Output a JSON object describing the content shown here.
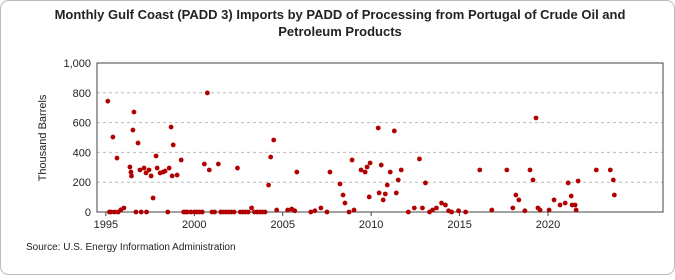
{
  "chart_data": {
    "type": "scatter",
    "title": [
      "Monthly Gulf Coast (PADD 3) Imports by PADD of Processing from Portugal of Crude Oil and",
      "Petroleum Products"
    ],
    "y_label": "Thousand Barrels",
    "source": "Source: U.S. Energy Information Administration",
    "color": "#b00000",
    "grid": true,
    "xlim": [
      1994.5,
      2026.5
    ],
    "ylim": [
      0,
      1000
    ],
    "xticks": [
      1995,
      2000,
      2005,
      2010,
      2015,
      2020
    ],
    "yticks": [
      0,
      200,
      400,
      600,
      800,
      {
        "value": 1000,
        "label": "1,000"
      }
    ],
    "x": [
      1995.11,
      1995.4,
      1995.63,
      1995.85,
      1996.02,
      1996.36,
      1996.42,
      1996.45,
      1996.53,
      1996.59,
      1996.82,
      1996.93,
      1997.16,
      1997.27,
      1997.44,
      1997.56,
      1997.67,
      1997.84,
      1997.9,
      1998.07,
      1998.24,
      1998.35,
      1998.58,
      1998.69,
      1998.75,
      1998.81,
      1999.03,
      1999.26,
      2000.57,
      2000.74,
      2000.85,
      2001.36,
      2002.44,
      2003.24,
      2004.2,
      2004.32,
      2004.49,
      2004.66,
      2005.28,
      2005.51,
      2005.68,
      2005.8,
      2006.59,
      2006.82,
      2007.16,
      2007.5,
      2007.67,
      2008.24,
      2008.41,
      2008.52,
      2008.75,
      2008.92,
      2009.03,
      2009.43,
      2009.66,
      2009.77,
      2009.89,
      2009.94,
      2010.4,
      2010.45,
      2010.57,
      2010.68,
      2010.8,
      2010.91,
      2011.08,
      2011.31,
      2011.42,
      2011.53,
      2011.7,
      2012.1,
      2012.44,
      2012.73,
      2012.9,
      2013.07,
      2013.3,
      2013.47,
      2013.69,
      2013.98,
      2014.2,
      2014.38,
      2014.55,
      2014.94,
      2015.34,
      2016.14,
      2016.82,
      2017.67,
      2018.01,
      2018.18,
      2018.35,
      2018.69,
      2018.98,
      2019.15,
      2019.32,
      2019.43,
      2019.55,
      2020.06,
      2020.34,
      2020.68,
      2020.97,
      2021.14,
      2021.31,
      2021.36,
      2021.53,
      2021.59,
      2021.7,
      2022.73,
      2023.52,
      2023.69,
      2023.75,
      1995.2,
      1995.3,
      1995.5,
      1995.7,
      1996.7,
      1997.0,
      1997.3,
      1998.5,
      1999.4,
      1999.5,
      1999.6,
      1999.8,
      2000.0,
      2000.15,
      2000.3,
      2000.45,
      2001.0,
      2001.15,
      2001.5,
      2001.65,
      2001.8,
      2001.95,
      2002.1,
      2002.25,
      2002.6,
      2002.75,
      2002.9,
      2003.05,
      2003.4,
      2003.55,
      2003.7,
      2003.85,
      2004.0
    ],
    "values": [
      744,
      503,
      362,
      15,
      27,
      302,
      268,
      242,
      550,
      671,
      463,
      282,
      295,
      262,
      282,
      242,
      94,
      376,
      295,
      262,
      268,
      275,
      295,
      570,
      242,
      450,
      248,
      349,
      322,
      799,
      282,
      322,
      295,
      27,
      181,
      369,
      483,
      13,
      13,
      20,
      8,
      268,
      0,
      8,
      27,
      0,
      268,
      188,
      114,
      60,
      0,
      349,
      13,
      282,
      268,
      302,
      101,
      329,
      564,
      128,
      315,
      81,
      121,
      181,
      268,
      544,
      128,
      215,
      282,
      0,
      27,
      356,
      27,
      195,
      0,
      13,
      27,
      60,
      47,
      8,
      0,
      8,
      0,
      282,
      13,
      282,
      27,
      114,
      81,
      8,
      282,
      215,
      631,
      27,
      13,
      13,
      81,
      47,
      60,
      195,
      107,
      47,
      47,
      13,
      208,
      282,
      282,
      215,
      114,
      0,
      0,
      0,
      0,
      0,
      0,
      0,
      0,
      0,
      0,
      0,
      0,
      0,
      0,
      0,
      0,
      0,
      0,
      0,
      0,
      0,
      0,
      0,
      0,
      0,
      0,
      0,
      0,
      0,
      0,
      0,
      0,
      0
    ]
  }
}
